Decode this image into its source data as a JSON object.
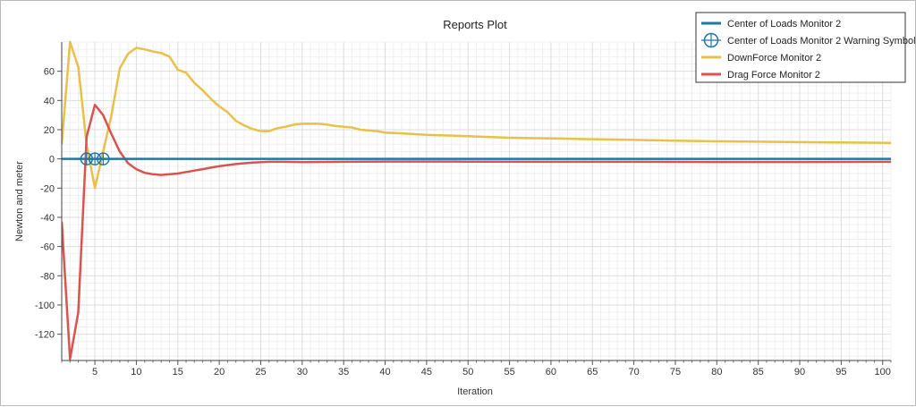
{
  "chart_data": {
    "type": "line",
    "title": "Reports Plot",
    "xlabel": "Iteration",
    "ylabel": "Newton and meter",
    "xlim": [
      1,
      101
    ],
    "ylim": [
      -138,
      80
    ],
    "x_ticks": [
      5,
      10,
      15,
      20,
      25,
      30,
      35,
      40,
      45,
      50,
      55,
      60,
      65,
      70,
      75,
      80,
      85,
      90,
      95,
      100
    ],
    "y_ticks": [
      -120,
      -100,
      -80,
      -60,
      -40,
      -20,
      0,
      20,
      40,
      60
    ],
    "grid": true,
    "legend_position": "top-right",
    "series": [
      {
        "name": "Center of Loads Monitor 2",
        "color": "#1f77a4",
        "x": [
          1,
          10,
          20,
          30,
          40,
          50,
          60,
          70,
          80,
          90,
          101
        ],
        "y": [
          0,
          0,
          0,
          0,
          0,
          0,
          0,
          0,
          0,
          0,
          0
        ]
      },
      {
        "name": "Center of Loads Monitor 2 Warning Symbol",
        "color": "#1f77a4",
        "marker": "circle-slash",
        "x": [
          4,
          5,
          6
        ],
        "y": [
          0,
          0,
          0
        ]
      },
      {
        "name": "DownForce Monitor 2",
        "color": "#e8c04a",
        "x": [
          1,
          2,
          3,
          4,
          5,
          6,
          7,
          8,
          9,
          10,
          11,
          12,
          13,
          14,
          15,
          16,
          17,
          18,
          19,
          20,
          21,
          22,
          23,
          24,
          25,
          26,
          27,
          28,
          29,
          30,
          31,
          32,
          33,
          34,
          35,
          36,
          37,
          38,
          39,
          40,
          42,
          45,
          50,
          55,
          60,
          65,
          70,
          75,
          80,
          85,
          90,
          95,
          101
        ],
        "y": [
          10,
          80,
          63,
          10,
          -20,
          5,
          30,
          62,
          72,
          76,
          75,
          73.5,
          72.5,
          70,
          61,
          59,
          52,
          47,
          41,
          36,
          32,
          26,
          23,
          20.5,
          19,
          19,
          21,
          22,
          23.5,
          24,
          24,
          24,
          23.5,
          22.5,
          22,
          21.5,
          20,
          19.5,
          19,
          18,
          17.5,
          16.5,
          15.5,
          14.5,
          14,
          13.5,
          13,
          12.5,
          12,
          11.8,
          11.5,
          11.3,
          11
        ]
      },
      {
        "name": "Drag Force Monitor 2",
        "color": "#d9534f",
        "x": [
          1,
          2,
          3,
          4,
          5,
          6,
          7,
          8,
          9,
          10,
          11,
          12,
          13,
          14,
          15,
          16,
          17,
          18,
          19,
          20,
          22,
          24,
          26,
          28,
          30,
          35,
          40,
          45,
          50,
          60,
          70,
          80,
          90,
          101
        ],
        "y": [
          -43,
          -137,
          -105,
          15,
          37,
          30,
          17,
          5,
          -3,
          -7,
          -9.5,
          -10.5,
          -11,
          -10.5,
          -10,
          -9,
          -8,
          -7,
          -6,
          -5,
          -3.5,
          -2.5,
          -2,
          -2,
          -2.2,
          -2,
          -1.8,
          -1.8,
          -1.9,
          -2,
          -2,
          -2.1,
          -2.1,
          -2
        ]
      }
    ]
  }
}
